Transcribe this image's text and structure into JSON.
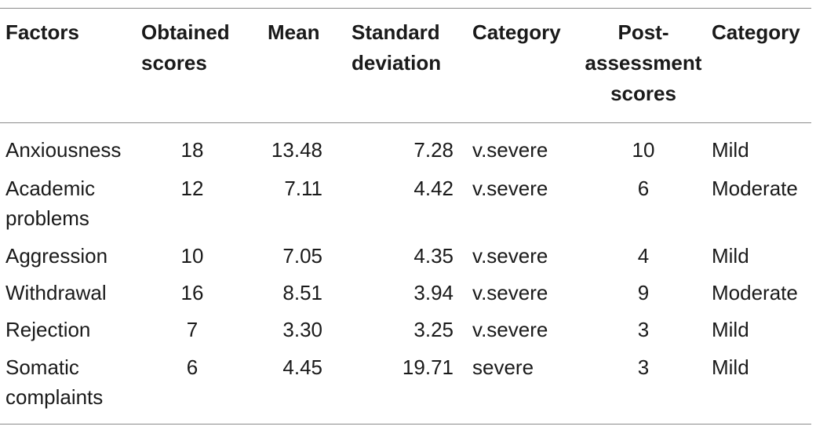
{
  "table": {
    "headers": {
      "factors": "Factors",
      "obtained": "Obtained\nscores",
      "mean": "Mean",
      "sd": "Standard\ndeviation",
      "category1": "Category",
      "post": "Post-\nassessment\nscores",
      "category2": "Category"
    },
    "rows": [
      {
        "factor": "Anxiousness",
        "obtained": "18",
        "mean": "13.48",
        "sd": "7.28",
        "category1": "v.severe",
        "post": "10",
        "category2": "Mild"
      },
      {
        "factor": "Academic\nproblems",
        "obtained": "12",
        "mean": "7.11",
        "sd": "4.42",
        "category1": "v.severe",
        "post": "6",
        "category2": "Moderate"
      },
      {
        "factor": "Aggression",
        "obtained": "10",
        "mean": "7.05",
        "sd": "4.35",
        "category1": "v.severe",
        "post": "4",
        "category2": "Mild"
      },
      {
        "factor": "Withdrawal",
        "obtained": "16",
        "mean": "8.51",
        "sd": "3.94",
        "category1": "v.severe",
        "post": "9",
        "category2": "Moderate"
      },
      {
        "factor": "Rejection",
        "obtained": "7",
        "mean": "3.30",
        "sd": "3.25",
        "category1": "v.severe",
        "post": "3",
        "category2": "Mild"
      },
      {
        "factor": "Somatic\ncomplaints",
        "obtained": "6",
        "mean": "4.45",
        "sd": "19.71",
        "category1": "severe",
        "post": "3",
        "category2": "Mild"
      }
    ]
  }
}
